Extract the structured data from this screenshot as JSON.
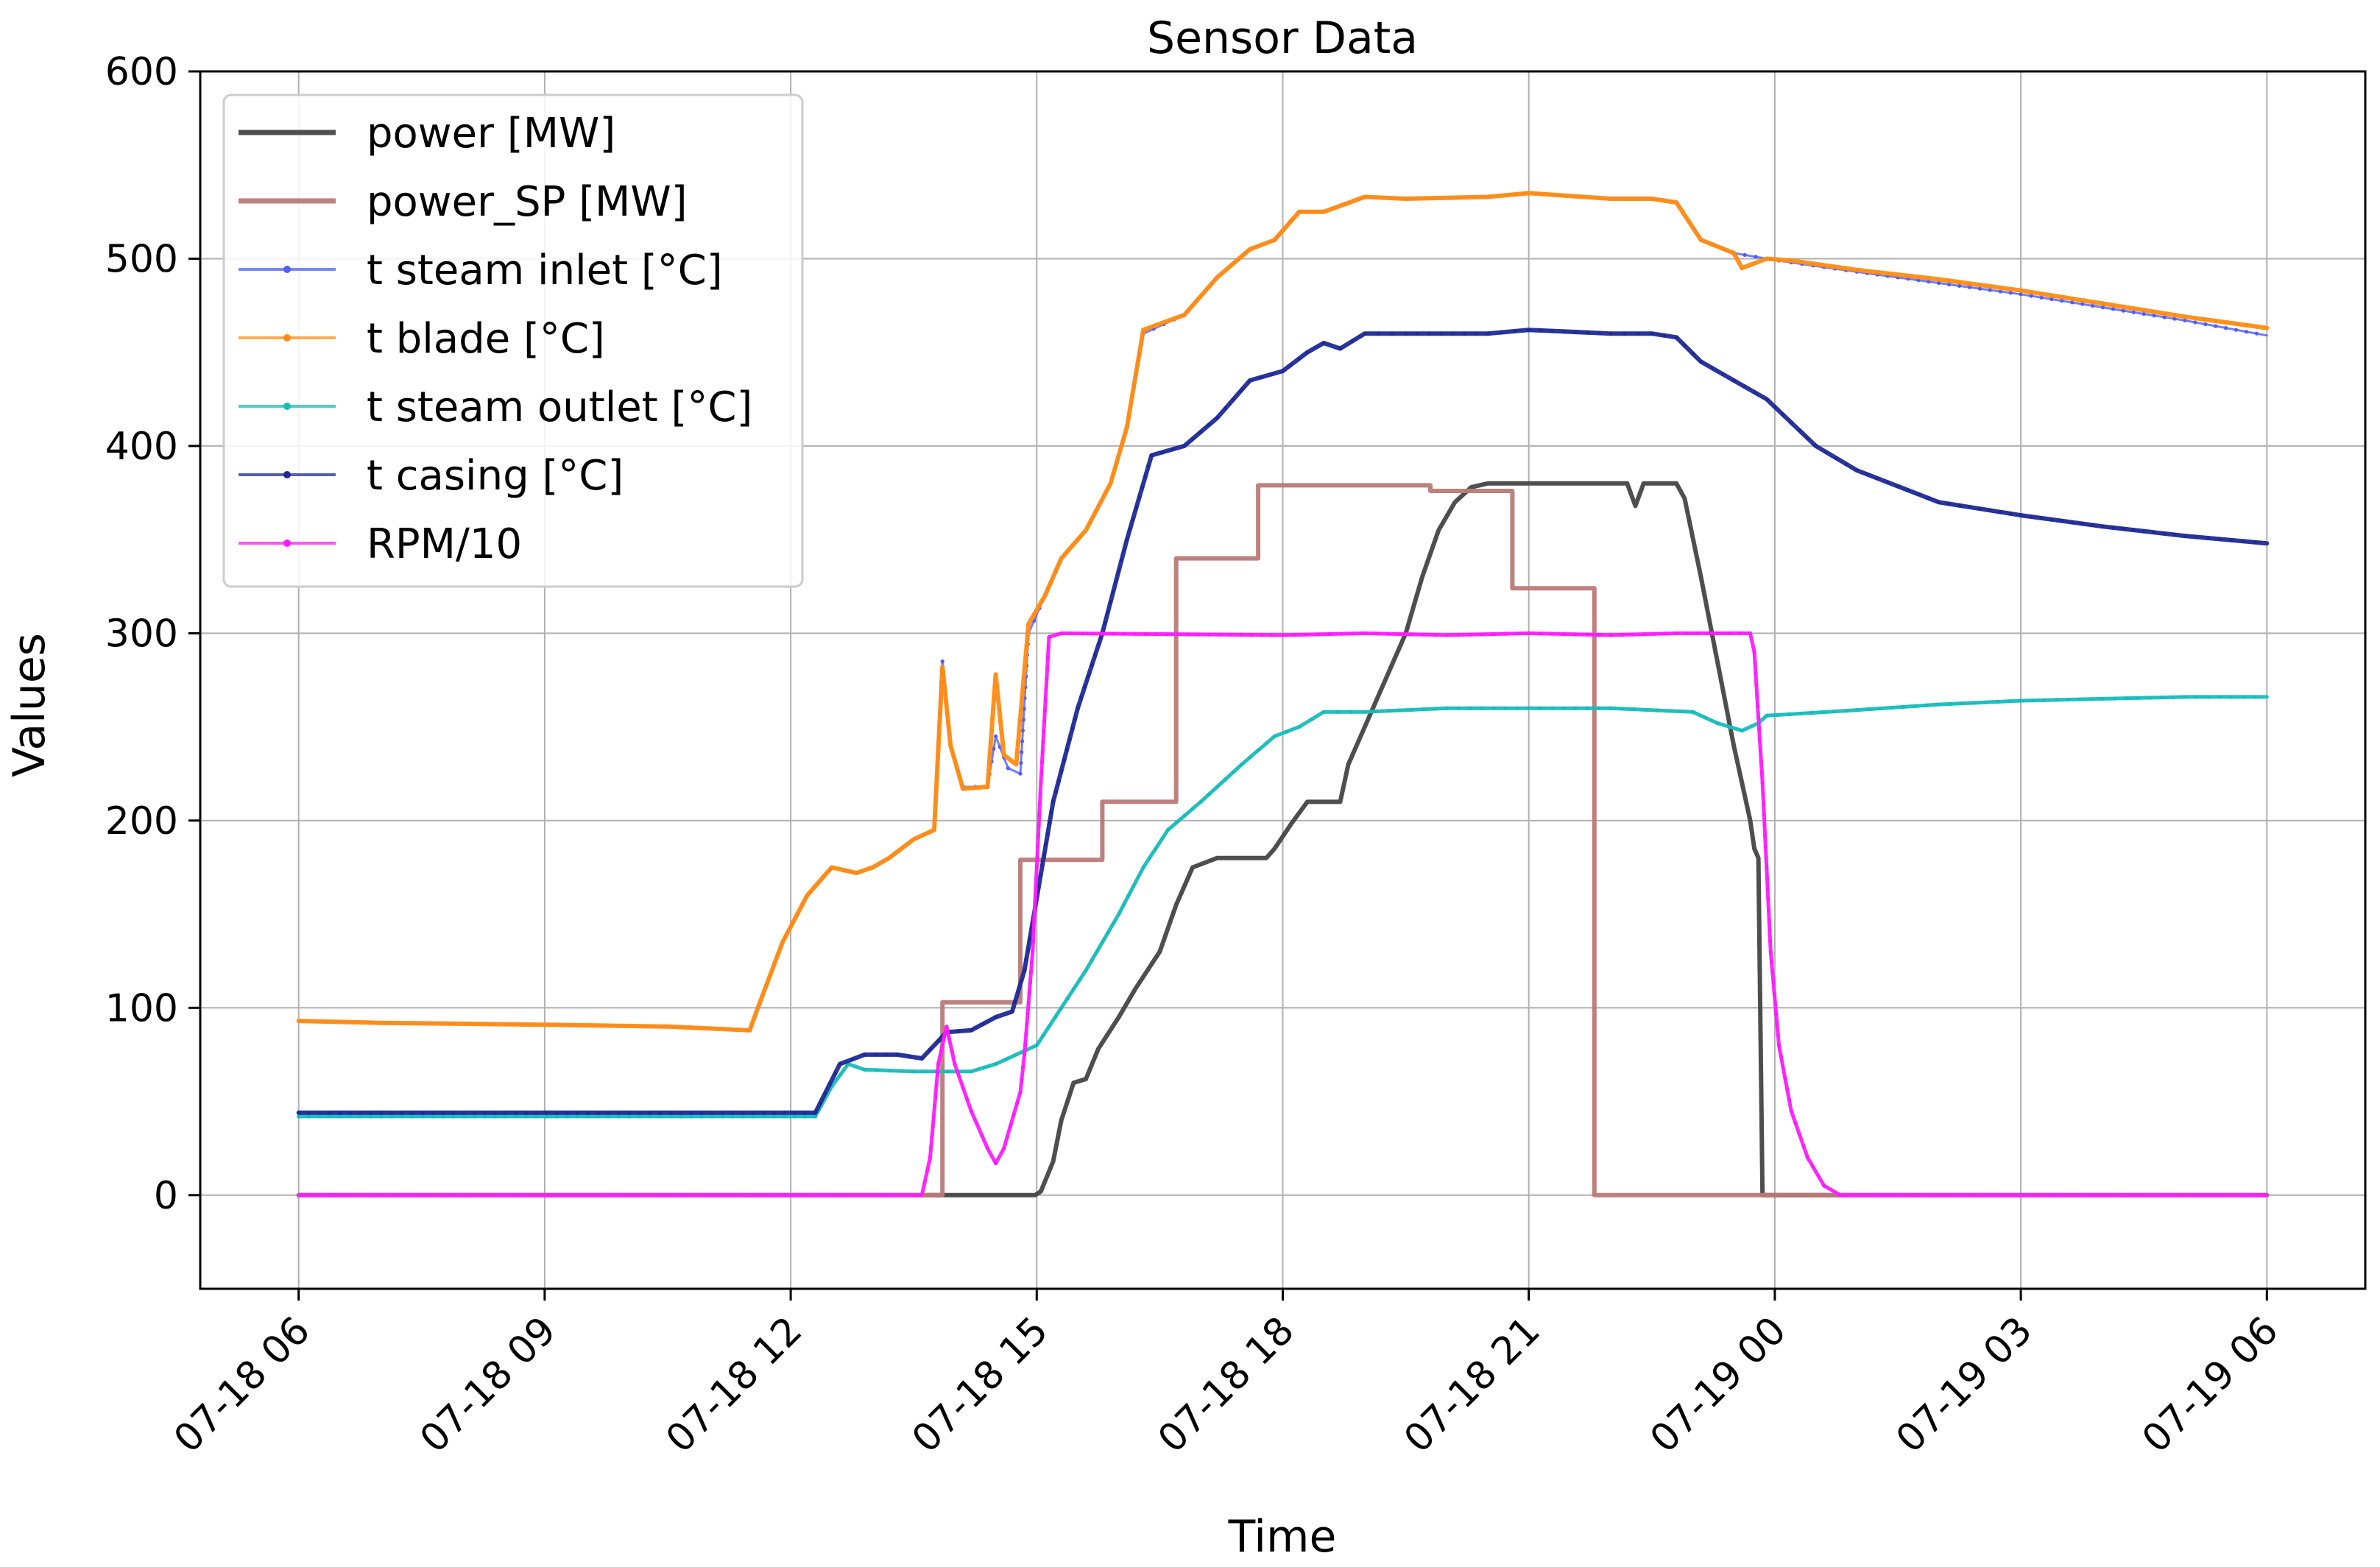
{
  "chart_data": {
    "type": "line",
    "title": "Sensor Data",
    "xlabel": "Time",
    "ylabel": "Values",
    "x_axis": {
      "ticks": [
        {
          "hour": 6,
          "label": "07-18 06"
        },
        {
          "hour": 9,
          "label": "07-18 09"
        },
        {
          "hour": 12,
          "label": "07-18 12"
        },
        {
          "hour": 15,
          "label": "07-18 15"
        },
        {
          "hour": 18,
          "label": "07-18 18"
        },
        {
          "hour": 21,
          "label": "07-18 21"
        },
        {
          "hour": 24,
          "label": "07-19 00"
        },
        {
          "hour": 27,
          "label": "07-19 03"
        },
        {
          "hour": 30,
          "label": "07-19 06"
        }
      ],
      "range_hours": [
        4.8,
        31.2
      ]
    },
    "y_axis": {
      "ticks": [
        0,
        100,
        200,
        300,
        400,
        500,
        600
      ],
      "ylim": [
        -50,
        600
      ]
    },
    "grid": true,
    "legend_position": "top-left",
    "series": [
      {
        "name": "power [MW]",
        "color": "#444444",
        "marker": false,
        "width": 6,
        "points": [
          [
            6,
            0
          ],
          [
            13.9,
            0
          ],
          [
            14.98,
            0
          ],
          [
            15.05,
            2
          ],
          [
            15.2,
            18
          ],
          [
            15.3,
            40
          ],
          [
            15.45,
            60
          ],
          [
            15.6,
            62
          ],
          [
            15.75,
            78
          ],
          [
            16,
            95
          ],
          [
            16.2,
            110
          ],
          [
            16.5,
            130
          ],
          [
            16.7,
            155
          ],
          [
            16.9,
            175
          ],
          [
            17.2,
            180
          ],
          [
            17.8,
            180
          ],
          [
            17.9,
            185
          ],
          [
            18.1,
            198
          ],
          [
            18.3,
            210
          ],
          [
            18.7,
            210
          ],
          [
            18.8,
            230
          ],
          [
            19,
            250
          ],
          [
            19.3,
            280
          ],
          [
            19.5,
            300
          ],
          [
            19.7,
            330
          ],
          [
            19.9,
            355
          ],
          [
            20.1,
            370
          ],
          [
            20.3,
            378
          ],
          [
            20.5,
            380
          ],
          [
            22.2,
            380
          ],
          [
            22.3,
            368
          ],
          [
            22.4,
            380
          ],
          [
            22.8,
            380
          ],
          [
            22.9,
            372
          ],
          [
            23.1,
            330
          ],
          [
            23.3,
            285
          ],
          [
            23.5,
            240
          ],
          [
            23.7,
            200
          ],
          [
            23.75,
            185
          ],
          [
            23.8,
            180
          ],
          [
            23.85,
            0
          ],
          [
            30,
            0
          ]
        ]
      },
      {
        "name": "power_SP [MW]",
        "color": "#b97a78",
        "marker": false,
        "width": 6,
        "points": [
          [
            6,
            0
          ],
          [
            13.85,
            0
          ],
          [
            13.85,
            103
          ],
          [
            14.8,
            103
          ],
          [
            14.8,
            179
          ],
          [
            15.8,
            179
          ],
          [
            15.8,
            210
          ],
          [
            16.7,
            210
          ],
          [
            16.7,
            340
          ],
          [
            17.7,
            340
          ],
          [
            17.7,
            379
          ],
          [
            19.8,
            379
          ],
          [
            19.8,
            376
          ],
          [
            20.8,
            376
          ],
          [
            20.8,
            324
          ],
          [
            21.8,
            324
          ],
          [
            21.8,
            0
          ],
          [
            30,
            0
          ]
        ]
      },
      {
        "name": "t steam inlet [°C]",
        "color": "#4d5dff",
        "marker": true,
        "width": 3,
        "points": [
          [
            6,
            93
          ],
          [
            7,
            92
          ],
          [
            9,
            91
          ],
          [
            10.5,
            90
          ],
          [
            11.5,
            88
          ],
          [
            11.6,
            100
          ],
          [
            11.9,
            135
          ],
          [
            12.2,
            160
          ],
          [
            12.5,
            175
          ],
          [
            12.8,
            172
          ],
          [
            13,
            175
          ],
          [
            13.2,
            180
          ],
          [
            13.5,
            190
          ],
          [
            13.75,
            195
          ],
          [
            13.85,
            285
          ],
          [
            13.95,
            240
          ],
          [
            14.1,
            218
          ],
          [
            14.4,
            218
          ],
          [
            14.5,
            245
          ],
          [
            14.65,
            228
          ],
          [
            14.8,
            225
          ],
          [
            14.9,
            300
          ],
          [
            15.1,
            320
          ],
          [
            15.3,
            340
          ],
          [
            15.6,
            355
          ],
          [
            15.9,
            380
          ],
          [
            16.1,
            410
          ],
          [
            16.3,
            460
          ],
          [
            16.8,
            470
          ],
          [
            17.2,
            490
          ],
          [
            17.6,
            505
          ],
          [
            17.9,
            510
          ],
          [
            18.2,
            525
          ],
          [
            18.5,
            525
          ],
          [
            19,
            533
          ],
          [
            19.5,
            532
          ],
          [
            20.5,
            533
          ],
          [
            21,
            535
          ],
          [
            22,
            532
          ],
          [
            22.5,
            532
          ],
          [
            22.8,
            530
          ],
          [
            23.1,
            510
          ],
          [
            23.5,
            503
          ],
          [
            23.9,
            500
          ],
          [
            24.2,
            498
          ],
          [
            25,
            493
          ],
          [
            26,
            487
          ],
          [
            27,
            481
          ],
          [
            28,
            474
          ],
          [
            29,
            467
          ],
          [
            30,
            459
          ]
        ]
      },
      {
        "name": "t blade [°C]",
        "color": "#ff8c14",
        "marker": true,
        "width": 6,
        "points": [
          [
            6,
            93
          ],
          [
            7,
            92
          ],
          [
            9,
            91
          ],
          [
            10.5,
            90
          ],
          [
            11.5,
            88
          ],
          [
            11.6,
            100
          ],
          [
            11.9,
            135
          ],
          [
            12.2,
            160
          ],
          [
            12.5,
            175
          ],
          [
            12.8,
            172
          ],
          [
            13,
            175
          ],
          [
            13.2,
            180
          ],
          [
            13.5,
            190
          ],
          [
            13.75,
            195
          ],
          [
            13.85,
            282
          ],
          [
            13.95,
            240
          ],
          [
            14.1,
            217
          ],
          [
            14.4,
            218
          ],
          [
            14.5,
            278
          ],
          [
            14.6,
            235
          ],
          [
            14.75,
            230
          ],
          [
            14.9,
            305
          ],
          [
            15.1,
            320
          ],
          [
            15.3,
            340
          ],
          [
            15.6,
            355
          ],
          [
            15.9,
            380
          ],
          [
            16.1,
            410
          ],
          [
            16.3,
            462
          ],
          [
            16.8,
            470
          ],
          [
            17.2,
            490
          ],
          [
            17.6,
            505
          ],
          [
            17.9,
            510
          ],
          [
            18.2,
            525
          ],
          [
            18.5,
            525
          ],
          [
            19,
            533
          ],
          [
            19.5,
            532
          ],
          [
            20.5,
            533
          ],
          [
            21,
            535
          ],
          [
            22,
            532
          ],
          [
            22.5,
            532
          ],
          [
            22.8,
            530
          ],
          [
            23.1,
            510
          ],
          [
            23.5,
            503
          ],
          [
            23.6,
            495
          ],
          [
            23.9,
            500
          ],
          [
            24.2,
            499
          ],
          [
            25,
            494
          ],
          [
            26,
            489
          ],
          [
            27,
            483
          ],
          [
            28,
            476
          ],
          [
            29,
            469
          ],
          [
            30,
            463
          ]
        ]
      },
      {
        "name": "t steam outlet [°C]",
        "color": "#16bcbc",
        "marker": true,
        "width": 5,
        "points": [
          [
            6,
            42
          ],
          [
            12.3,
            42
          ],
          [
            12.5,
            58
          ],
          [
            12.7,
            70
          ],
          [
            12.9,
            67
          ],
          [
            13.5,
            66
          ],
          [
            14.2,
            66
          ],
          [
            14.5,
            70
          ],
          [
            15,
            80
          ],
          [
            15.3,
            100
          ],
          [
            15.6,
            120
          ],
          [
            16,
            150
          ],
          [
            16.3,
            175
          ],
          [
            16.6,
            195
          ],
          [
            17,
            210
          ],
          [
            17.5,
            230
          ],
          [
            17.9,
            245
          ],
          [
            18.2,
            250
          ],
          [
            18.5,
            258
          ],
          [
            19,
            258
          ],
          [
            20,
            260
          ],
          [
            21,
            260
          ],
          [
            22,
            260
          ],
          [
            23,
            258
          ],
          [
            23.3,
            252
          ],
          [
            23.6,
            248
          ],
          [
            23.8,
            252
          ],
          [
            23.9,
            256
          ],
          [
            25,
            259
          ],
          [
            26,
            262
          ],
          [
            27,
            264
          ],
          [
            28,
            265
          ],
          [
            29,
            266
          ],
          [
            30,
            266
          ]
        ]
      },
      {
        "name": "t casing [°C]",
        "color": "#1e2a96",
        "marker": true,
        "width": 6,
        "points": [
          [
            6,
            44
          ],
          [
            12.3,
            44
          ],
          [
            12.6,
            70
          ],
          [
            12.9,
            75
          ],
          [
            13.3,
            75
          ],
          [
            13.6,
            73
          ],
          [
            13.9,
            87
          ],
          [
            14.2,
            88
          ],
          [
            14.5,
            95
          ],
          [
            14.7,
            98
          ],
          [
            14.85,
            120
          ],
          [
            15.2,
            210
          ],
          [
            15.5,
            260
          ],
          [
            15.8,
            300
          ],
          [
            16.1,
            350
          ],
          [
            16.4,
            395
          ],
          [
            16.8,
            400
          ],
          [
            17.2,
            415
          ],
          [
            17.6,
            435
          ],
          [
            18,
            440
          ],
          [
            18.3,
            450
          ],
          [
            18.5,
            455
          ],
          [
            18.7,
            452
          ],
          [
            19,
            460
          ],
          [
            19.5,
            460
          ],
          [
            20.5,
            460
          ],
          [
            21,
            462
          ],
          [
            22,
            460
          ],
          [
            22.5,
            460
          ],
          [
            22.8,
            458
          ],
          [
            23.1,
            445
          ],
          [
            23.5,
            435
          ],
          [
            23.9,
            425
          ],
          [
            24.5,
            400
          ],
          [
            25,
            387
          ],
          [
            26,
            370
          ],
          [
            27,
            363
          ],
          [
            28,
            357
          ],
          [
            29,
            352
          ],
          [
            30,
            348
          ]
        ]
      },
      {
        "name": "RPM/10",
        "color": "#ff1aff",
        "marker": true,
        "width": 5,
        "points": [
          [
            6,
            0
          ],
          [
            13.6,
            0
          ],
          [
            13.7,
            20
          ],
          [
            13.8,
            70
          ],
          [
            13.9,
            90
          ],
          [
            14,
            70
          ],
          [
            14.2,
            45
          ],
          [
            14.4,
            25
          ],
          [
            14.5,
            17
          ],
          [
            14.6,
            25
          ],
          [
            14.8,
            55
          ],
          [
            14.85,
            75
          ],
          [
            14.95,
            130
          ],
          [
            15.05,
            220
          ],
          [
            15.15,
            298
          ],
          [
            15.3,
            300
          ],
          [
            18,
            299
          ],
          [
            19,
            300
          ],
          [
            20,
            299
          ],
          [
            21,
            300
          ],
          [
            22,
            299
          ],
          [
            22.8,
            300
          ],
          [
            23.7,
            300
          ],
          [
            23.75,
            290
          ],
          [
            23.85,
            220
          ],
          [
            23.95,
            130
          ],
          [
            24.05,
            80
          ],
          [
            24.2,
            45
          ],
          [
            24.4,
            20
          ],
          [
            24.6,
            5
          ],
          [
            24.8,
            0
          ],
          [
            30,
            0
          ]
        ]
      }
    ]
  }
}
